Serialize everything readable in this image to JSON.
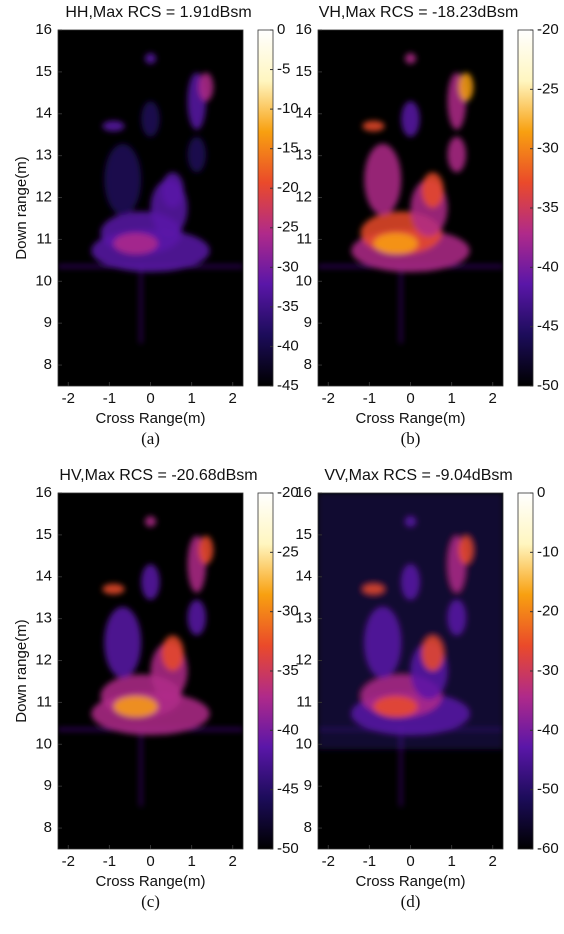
{
  "chart_data": [
    {
      "type": "heatmap",
      "title": "HH,Max RCS = 1.91dBsm",
      "x_label": "Cross Range(m)",
      "y_label": "Down range(m)",
      "caption": "(a)",
      "xlim": [
        -2.25,
        2.25
      ],
      "ylim": [
        7.5,
        16
      ],
      "xticks": [
        -2,
        -1,
        0,
        1,
        2
      ],
      "yticks": [
        8,
        9,
        10,
        11,
        12,
        13,
        14,
        15,
        16
      ],
      "colorbar_lim": [
        -45,
        0
      ],
      "colorbar_ticks": [
        0,
        -5,
        -10,
        -15,
        -20,
        -25,
        -30,
        -35,
        -40,
        -45
      ],
      "colormap": [
        "#000000",
        "#1c0c5a",
        "#5a16a8",
        "#b02a8a",
        "#ea4a2a",
        "#f8a010",
        "#fff6c0",
        "#ffffff"
      ]
    },
    {
      "type": "heatmap",
      "title": "VH,Max RCS = -18.23dBsm",
      "x_label": "Cross Range(m)",
      "caption": "(b)",
      "xlim": [
        -2.25,
        2.25
      ],
      "ylim": [
        7.5,
        16
      ],
      "xticks": [
        -2,
        -1,
        0,
        1,
        2
      ],
      "yticks": [
        8,
        9,
        10,
        11,
        12,
        13,
        14,
        15,
        16
      ],
      "colorbar_lim": [
        -50,
        -20
      ],
      "colorbar_ticks": [
        -20,
        -25,
        -30,
        -35,
        -40,
        -45,
        -50
      ],
      "colormap": [
        "#000000",
        "#1c0c5a",
        "#5a16a8",
        "#b02a8a",
        "#ea4a2a",
        "#f8a010",
        "#fff6c0",
        "#ffffff"
      ]
    },
    {
      "type": "heatmap",
      "title": "HV,Max RCS = -20.68dBsm",
      "x_label": "Cross Range(m)",
      "y_label": "Down range(m)",
      "caption": "(c)",
      "xlim": [
        -2.25,
        2.25
      ],
      "ylim": [
        7.5,
        16
      ],
      "xticks": [
        -2,
        -1,
        0,
        1,
        2
      ],
      "yticks": [
        8,
        9,
        10,
        11,
        12,
        13,
        14,
        15,
        16
      ],
      "colorbar_lim": [
        -50,
        -20
      ],
      "colorbar_ticks": [
        -20,
        -25,
        -30,
        -35,
        -40,
        -45,
        -50
      ],
      "colormap": [
        "#000000",
        "#1c0c5a",
        "#5a16a8",
        "#b02a8a",
        "#ea4a2a",
        "#f8a010",
        "#fff6c0",
        "#ffffff"
      ]
    },
    {
      "type": "heatmap",
      "title": "VV,Max RCS = -9.04dBsm",
      "x_label": "Cross Range(m)",
      "caption": "(d)",
      "xlim": [
        -2.25,
        2.25
      ],
      "ylim": [
        7.5,
        16
      ],
      "xticks": [
        -2,
        -1,
        0,
        1,
        2
      ],
      "yticks": [
        8,
        9,
        10,
        11,
        12,
        13,
        14,
        15,
        16
      ],
      "colorbar_lim": [
        -60,
        0
      ],
      "colorbar_ticks": [
        0,
        -10,
        -20,
        -30,
        -40,
        -50,
        -60
      ],
      "colormap": [
        "#000000",
        "#1c0c5a",
        "#5a16a8",
        "#b02a8a",
        "#ea4a2a",
        "#f8a010",
        "#fff6c0",
        "#ffffff"
      ]
    }
  ]
}
